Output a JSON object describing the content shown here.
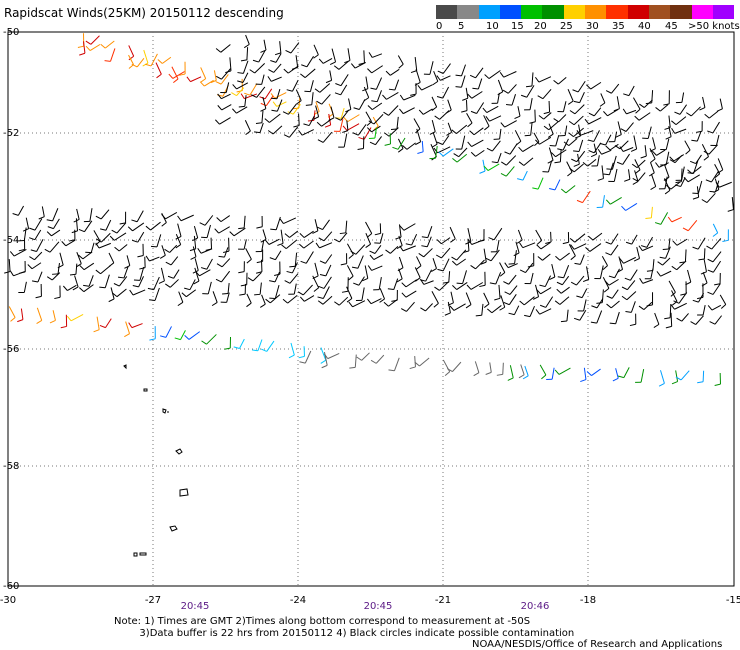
{
  "title": "Rapidscat Winds(25KM) 20150112 descending",
  "legend": {
    "colors": [
      "#4a4a4a",
      "#888888",
      "#00a0ff",
      "#0050ff",
      "#00c000",
      "#009000",
      "#ffd000",
      "#ff9000",
      "#ff3000",
      "#d00000",
      "#a05020",
      "#703010",
      "#ff00ff",
      "#a000ff"
    ],
    "labels": [
      "0",
      "5",
      "10",
      "15",
      "20",
      "25",
      "30",
      "35",
      "40",
      "45",
      ">50 knots"
    ]
  },
  "map": {
    "lat_ticks": [
      "-50",
      "-52",
      "-54",
      "-56",
      "-58",
      "-60"
    ],
    "lon_ticks": [
      "-30",
      "-27",
      "-24",
      "-21",
      "-18",
      "-15"
    ],
    "time_labels": [
      "20:45",
      "20:45",
      "20:46"
    ]
  },
  "notes": [
    "Note: 1) Times are GMT 2)Times along bottom correspond to measurement at -50S",
    "        3)Data buffer is 22 hrs from 20150112 4) Black circles indicate possible contamination"
  ],
  "credit": "NOAA/NESDIS/Office of Research and Applications"
}
